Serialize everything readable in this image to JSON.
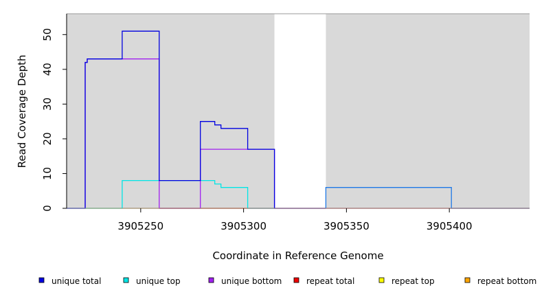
{
  "chart_data": {
    "type": "line",
    "title": "",
    "xlabel": "Coordinate in Reference Genome",
    "ylabel": "Read Coverage Depth",
    "xlim": [
      3905214,
      3905439
    ],
    "ylim": [
      0,
      56
    ],
    "xticks": [
      3905250,
      3905300,
      3905350,
      3905400
    ],
    "yticks": [
      0,
      10,
      20,
      30,
      40,
      50
    ],
    "grid": false,
    "background": "#d9d9d9",
    "shaded_regions": [
      [
        3905214,
        3905315
      ],
      [
        3905340,
        3905439
      ]
    ],
    "legend_position": "bottom",
    "series": [
      {
        "name": "unique total",
        "color": "#0000e0",
        "points": [
          [
            3905214,
            0
          ],
          [
            3905223,
            0
          ],
          [
            3905223,
            42
          ],
          [
            3905224,
            42
          ],
          [
            3905224,
            43
          ],
          [
            3905241,
            43
          ],
          [
            3905241,
            51
          ],
          [
            3905259,
            51
          ],
          [
            3905259,
            8
          ],
          [
            3905279,
            8
          ],
          [
            3905279,
            25
          ],
          [
            3905286,
            25
          ],
          [
            3905286,
            24
          ],
          [
            3905289,
            24
          ],
          [
            3905289,
            23
          ],
          [
            3905302,
            23
          ],
          [
            3905302,
            17
          ],
          [
            3905315,
            17
          ],
          [
            3905315,
            0
          ],
          [
            3905340,
            0
          ]
        ]
      },
      {
        "name": "unique top",
        "color": "#00e5e5",
        "points": [
          [
            3905214,
            0
          ],
          [
            3905241,
            0
          ],
          [
            3905241,
            8
          ],
          [
            3905286,
            8
          ],
          [
            3905286,
            7
          ],
          [
            3905289,
            7
          ],
          [
            3905289,
            6
          ],
          [
            3905302,
            6
          ],
          [
            3905302,
            0
          ],
          [
            3905315,
            0
          ]
        ]
      },
      {
        "name": "unique bottom",
        "color": "#a020f0",
        "points": [
          [
            3905214,
            0
          ],
          [
            3905223,
            0
          ],
          [
            3905223,
            42
          ],
          [
            3905224,
            42
          ],
          [
            3905224,
            43
          ],
          [
            3905259,
            43
          ],
          [
            3905259,
            0
          ],
          [
            3905279,
            0
          ],
          [
            3905279,
            17
          ],
          [
            3905315,
            17
          ],
          [
            3905315,
            0
          ]
        ]
      },
      {
        "name": "repeat total",
        "color": "#ee0000",
        "points": [
          [
            3905259,
            0
          ],
          [
            3905279,
            0
          ],
          [
            3905340,
            0
          ],
          [
            3905439,
            0
          ]
        ]
      },
      {
        "name": "repeat top",
        "color": "#ffff00",
        "points": [
          [
            3905223,
            0
          ],
          [
            3905241,
            0
          ]
        ]
      },
      {
        "name": "repeat bottom",
        "color": "#ffa500",
        "points": [
          [
            3905241,
            0
          ],
          [
            3905302,
            0
          ]
        ]
      },
      {
        "name": "",
        "color": "#1e78e6",
        "points": [
          [
            3905340,
            0
          ],
          [
            3905340,
            6
          ],
          [
            3905401,
            6
          ],
          [
            3905401,
            0
          ],
          [
            3905439,
            0
          ]
        ]
      }
    ],
    "legend": [
      {
        "label": "unique total",
        "color": "#0000e0"
      },
      {
        "label": "unique top",
        "color": "#00e5e5"
      },
      {
        "label": "unique bottom",
        "color": "#a020f0"
      },
      {
        "label": "repeat total",
        "color": "#ee0000"
      },
      {
        "label": "repeat top",
        "color": "#ffff00"
      },
      {
        "label": "repeat bottom",
        "color": "#ffa500"
      }
    ]
  }
}
